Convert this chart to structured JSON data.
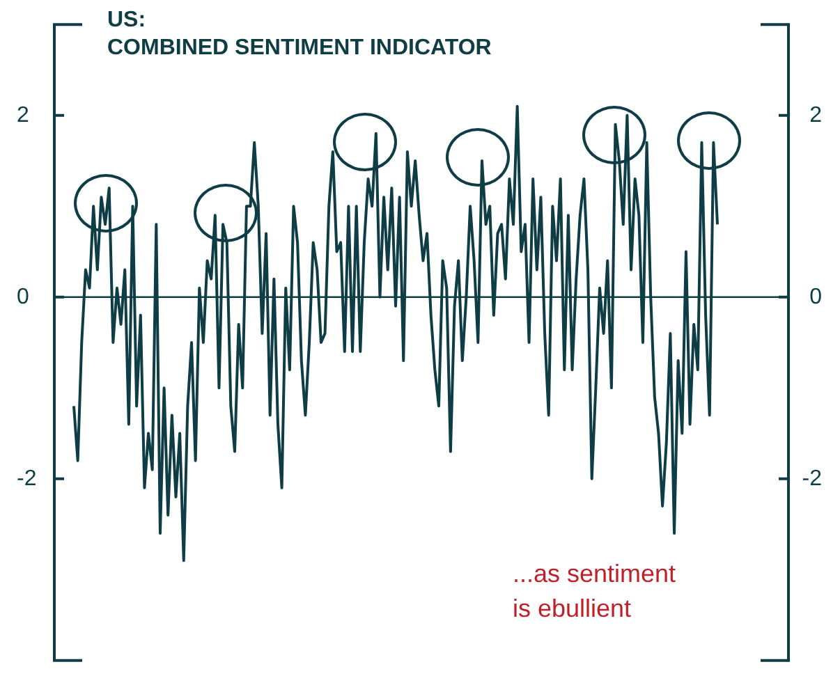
{
  "chart_data": {
    "type": "line",
    "title": "US:",
    "subtitle": "COMBINED SENTIMENT INDICATOR",
    "categories": [
      null,
      null,
      null,
      null,
      null,
      null,
      null,
      null,
      null,
      null,
      null,
      null,
      null,
      null,
      null,
      null,
      null,
      null,
      null,
      null,
      null,
      null,
      null,
      null,
      null,
      null,
      null,
      null,
      null,
      null,
      null,
      null,
      null,
      null,
      null,
      null,
      null,
      null,
      null,
      null,
      null,
      null,
      null,
      null,
      null,
      null,
      null,
      null,
      null,
      null,
      null,
      null,
      null,
      null,
      null,
      null,
      null,
      null,
      null,
      null,
      null,
      null,
      null,
      null,
      null,
      null,
      null,
      null,
      null,
      null,
      null,
      null,
      null,
      null,
      null,
      null,
      null,
      null,
      null,
      null,
      null,
      null,
      null,
      null,
      null,
      null,
      null,
      null,
      null,
      null,
      null,
      null,
      null,
      null,
      null,
      null,
      null,
      null,
      null,
      null,
      null,
      null,
      null,
      null,
      null,
      null,
      null,
      null,
      null,
      null,
      null,
      null,
      null,
      null,
      null,
      null,
      null,
      null,
      null,
      null,
      null,
      null,
      null,
      null,
      null,
      null,
      null,
      null,
      null,
      null,
      null,
      null,
      null,
      null,
      null,
      null,
      null,
      null,
      null,
      null,
      null,
      null,
      null,
      null,
      null,
      null,
      null,
      null,
      null,
      null,
      null,
      null,
      null,
      null,
      null,
      null,
      null,
      null,
      null,
      null,
      null,
      null,
      null,
      null,
      null
    ],
    "series": [
      {
        "color": "#0e3d45",
        "values": [
          -1.2,
          -1.8,
          -0.5,
          0.3,
          0.1,
          1.0,
          0.3,
          1.1,
          0.8,
          1.2,
          -0.5,
          0.1,
          -0.3,
          0.3,
          -1.4,
          1.0,
          -1.2,
          -0.2,
          -2.1,
          -1.5,
          -1.9,
          0.8,
          -2.6,
          -1.0,
          -2.4,
          -1.3,
          -2.2,
          -1.5,
          -2.9,
          -1.2,
          -0.5,
          -1.8,
          0.1,
          -0.5,
          0.4,
          0.2,
          0.9,
          -1.0,
          0.8,
          0.6,
          -1.2,
          -1.7,
          -0.3,
          -1.0,
          1.0,
          1.0,
          1.7,
          1.0,
          -0.4,
          0.7,
          -1.3,
          0.2,
          -1.4,
          -2.1,
          0.1,
          -0.8,
          1.0,
          0.6,
          -0.7,
          -1.3,
          -0.5,
          0.6,
          0.3,
          -0.5,
          -0.4,
          1.0,
          1.6,
          0.5,
          0.6,
          -0.6,
          1.0,
          -0.6,
          1.0,
          -0.6,
          0.6,
          1.3,
          1.0,
          1.8,
          0.0,
          1.1,
          0.3,
          1.2,
          -0.1,
          1.1,
          -0.7,
          1.6,
          1.0,
          1.5,
          0.9,
          0.4,
          0.7,
          -0.2,
          -0.8,
          -1.2,
          0.4,
          0.1,
          -1.7,
          -0.1,
          0.4,
          -0.7,
          0.0,
          1.0,
          0.4,
          -0.5,
          1.5,
          0.8,
          1.0,
          -0.2,
          0.7,
          0.8,
          0.2,
          1.3,
          0.8,
          2.1,
          0.5,
          0.8,
          -0.5,
          1.3,
          0.3,
          1.1,
          -0.4,
          -1.3,
          1.0,
          0.4,
          1.3,
          -0.8,
          0.9,
          -0.8,
          0.2,
          0.9,
          1.3,
          0.3,
          -2.0,
          -1.0,
          0.1,
          -0.4,
          0.4,
          -1.0,
          1.9,
          1.5,
          0.8,
          2.0,
          0.3,
          1.3,
          0.9,
          -0.5,
          1.7,
          0.0,
          -1.1,
          -1.5,
          -2.3,
          -1.6,
          -0.4,
          -2.6,
          -0.7,
          -1.5,
          0.5,
          -1.4,
          -0.3,
          -0.8,
          1.7,
          -0.2,
          -1.3,
          1.7,
          0.8
        ]
      }
    ],
    "ylim": [
      -4,
      3
    ],
    "yticks": [
      2,
      0,
      -2
    ],
    "y2lim": [
      -4,
      3
    ],
    "y2ticks": [
      2,
      0,
      -2
    ],
    "ref_lines": [
      {
        "axis": "y",
        "value": 0,
        "color": "#0e3d45"
      }
    ],
    "annotations": [
      "...as sentiment is ebullient"
    ],
    "grid": false,
    "legend": false,
    "marker": "none",
    "line_style": "solid"
  }
}
